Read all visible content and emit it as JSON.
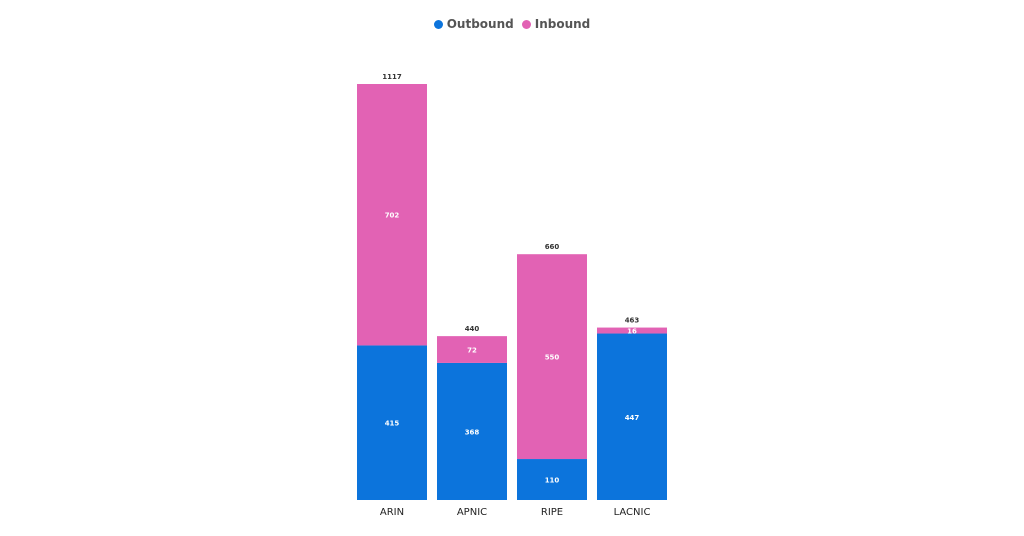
{
  "legend": [
    {
      "label": "Outbound",
      "color": "#0c74dc"
    },
    {
      "label": "Inbound",
      "color": "#e262b4"
    }
  ],
  "chart_data": {
    "type": "bar",
    "stacked": true,
    "categories": [
      "ARIN",
      "APNIC",
      "RIPE",
      "LACNIC"
    ],
    "series": [
      {
        "name": "Outbound",
        "color": "#0c74dc",
        "values": [
          415,
          368,
          110,
          447
        ]
      },
      {
        "name": "Inbound",
        "color": "#e262b4",
        "values": [
          702,
          72,
          550,
          16
        ]
      }
    ],
    "totals": [
      1117,
      440,
      660,
      463
    ],
    "ylim": [
      0,
      1117
    ],
    "grid": false,
    "legend_position": "top-center"
  }
}
